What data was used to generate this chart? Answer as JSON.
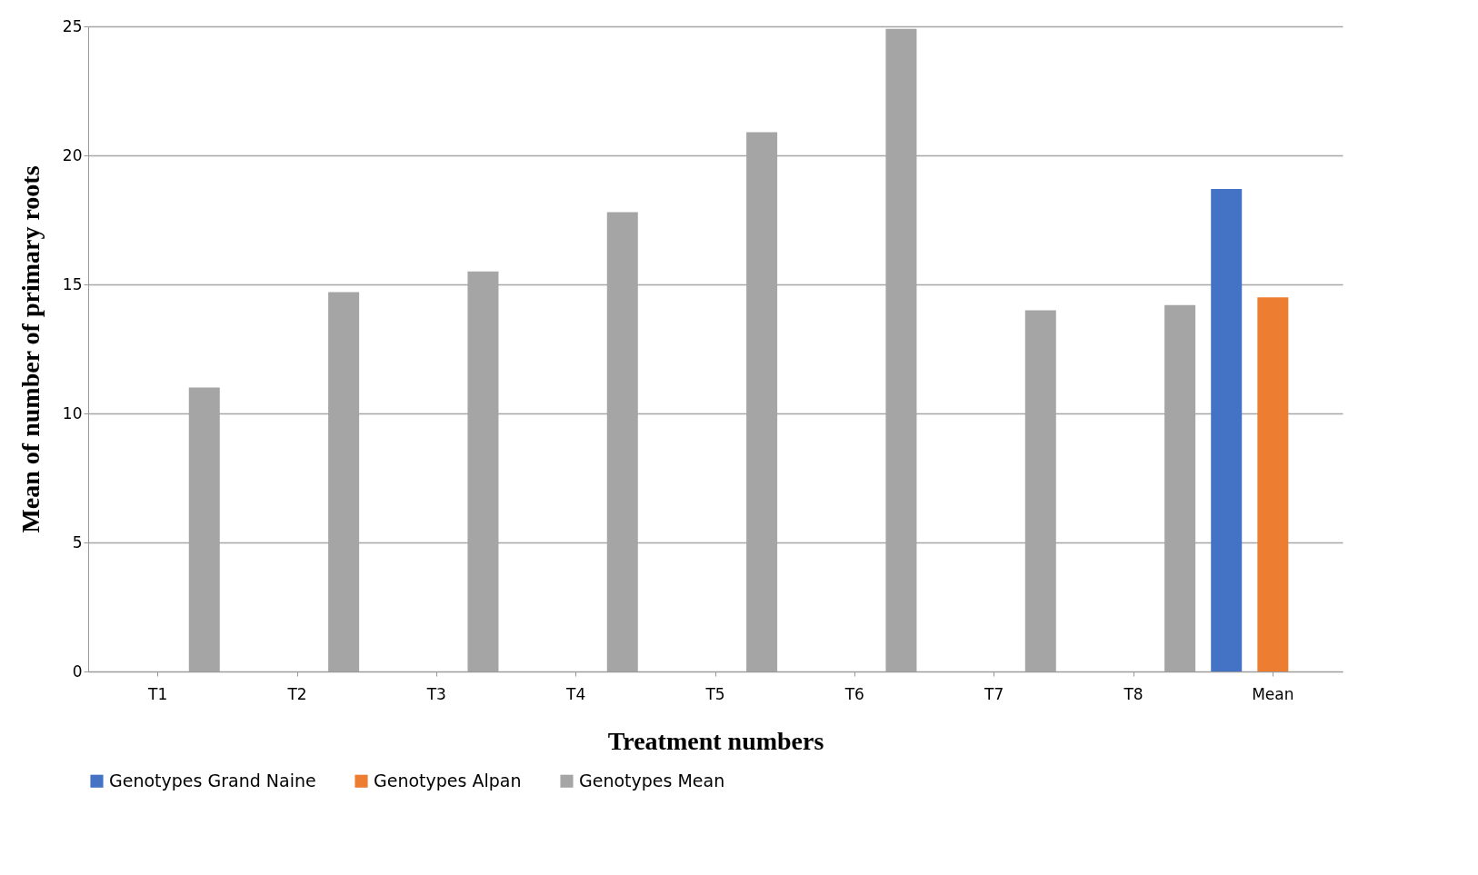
{
  "chart_data": {
    "type": "bar",
    "xlabel": "Treatment numbers",
    "ylabel": "Mean of number of primary roots",
    "categories": [
      "T1",
      "T2",
      "T3",
      "T4",
      "T5",
      "T6",
      "T7",
      "T8",
      "Mean"
    ],
    "series": [
      {
        "name": "Genotypes Grand Naine",
        "color": "#4472c4",
        "values": [
          null,
          null,
          null,
          null,
          null,
          null,
          null,
          null,
          18.7
        ]
      },
      {
        "name": "Genotypes Alpan",
        "color": "#ed7d31",
        "values": [
          null,
          null,
          null,
          null,
          null,
          null,
          null,
          null,
          14.5
        ]
      },
      {
        "name": "Genotypes Mean",
        "color": "#a5a5a5",
        "values": [
          11.0,
          14.7,
          15.5,
          17.8,
          20.9,
          24.9,
          14.0,
          14.2,
          null
        ]
      }
    ],
    "ylim": [
      0,
      25
    ],
    "yticks": [
      0,
      5,
      10,
      15,
      20,
      25
    ],
    "grid": "y",
    "legend": "bottom"
  }
}
